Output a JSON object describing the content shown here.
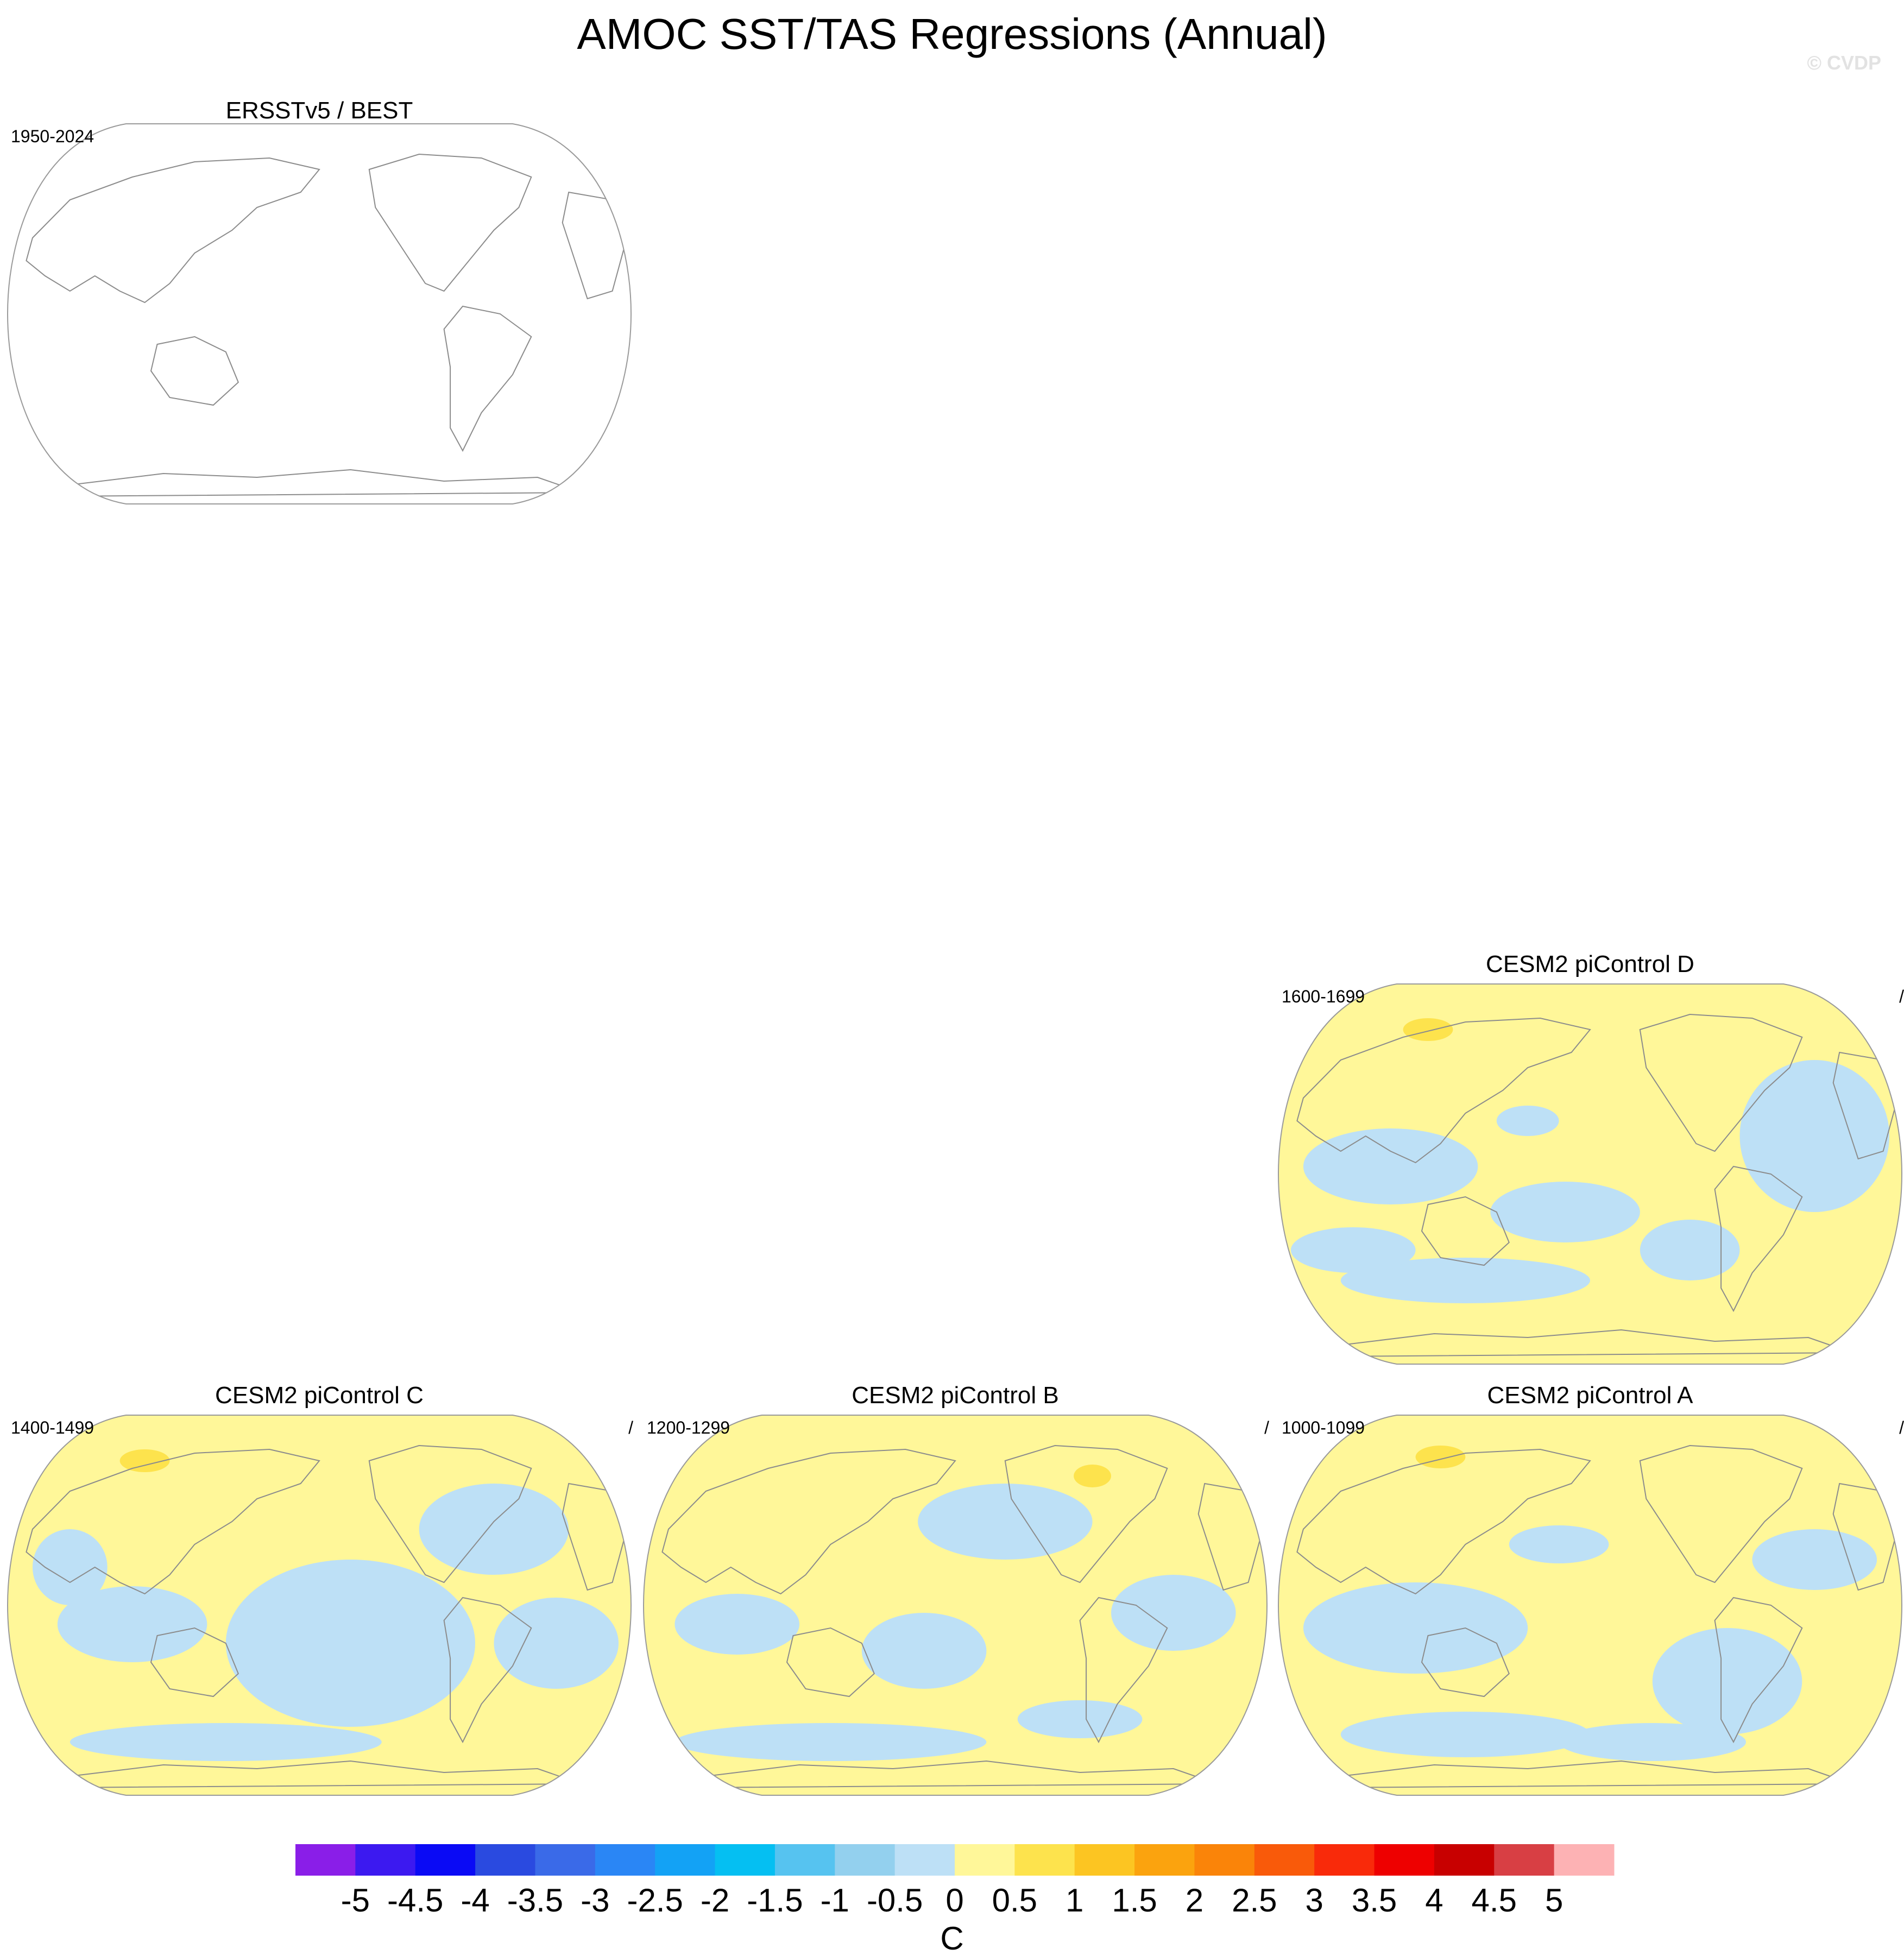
{
  "title": "AMOC SST/TAS Regressions (Annual)",
  "copyright": "© CVDP",
  "colors": {
    "neg_small": "#bde0f6",
    "pos_small": "#fff799",
    "pos_mid": "#fde34d",
    "coast": "#8c8c8c",
    "frame": "#9a9a9a"
  },
  "panels": [
    {
      "id": "obs",
      "title": "ERSSTv5 / BEST",
      "period": "1950-2024",
      "slash": "",
      "filled": false
    },
    {
      "id": "D",
      "title": "CESM2 piControl D",
      "period": "1600-1699",
      "slash": "/",
      "filled": true
    },
    {
      "id": "C",
      "title": "CESM2 piControl C",
      "period": "1400-1499",
      "slash": "/",
      "filled": true
    },
    {
      "id": "B",
      "title": "CESM2 piControl B",
      "period": "1200-1299",
      "slash": "/",
      "filled": true
    },
    {
      "id": "A",
      "title": "CESM2 piControl A",
      "period": "1000-1099",
      "slash": "/",
      "filled": true
    }
  ],
  "chart_data": {
    "type": "heatmap",
    "projection": "Robinson, Pacific-centered",
    "title": "AMOC SST/TAS Regressions (Annual)",
    "units": "C",
    "colorbar": {
      "levels": [
        "-5",
        "-4.5",
        "-4",
        "-3.5",
        "-3",
        "-2.5",
        "-2",
        "-1.5",
        "-1",
        "-0.5",
        "0",
        "0.5",
        "1",
        "1.5",
        "2",
        "2.5",
        "3",
        "3.5",
        "4",
        "4.5",
        "5"
      ],
      "colors": [
        "#8a1ee8",
        "#3c19f0",
        "#0a0af5",
        "#2a4ae0",
        "#3a6ae8",
        "#2a86f5",
        "#13a2f5",
        "#05bff2",
        "#56c3f0",
        "#93d0ee",
        "#bde0f6",
        "#fff799",
        "#fde34d",
        "#fcc522",
        "#fba30e",
        "#fa8409",
        "#f95a0a",
        "#f92a0a",
        "#ee0000",
        "#c80000",
        "#d83f44",
        "#fdb2b4"
      ]
    }
  }
}
